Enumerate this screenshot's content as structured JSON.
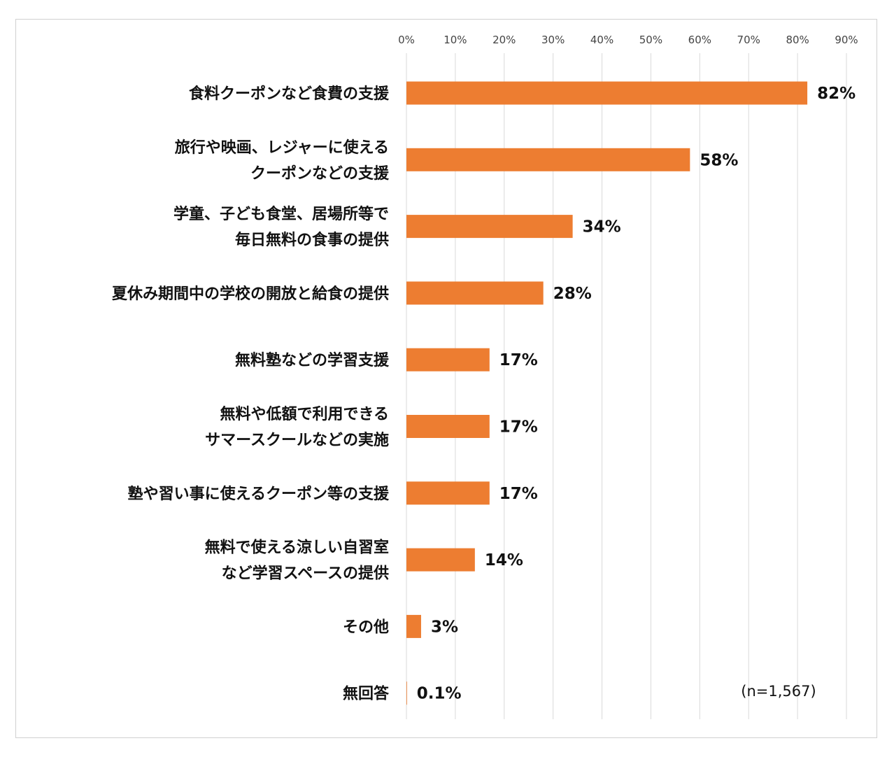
{
  "chart_data": {
    "type": "bar",
    "orientation": "horizontal",
    "categories": [
      [
        "食料クーポンなど食費の支援"
      ],
      [
        "旅行や映画、レジャーに使える",
        "クーポンなどの支援"
      ],
      [
        "学童、子ども食堂、居場所等で",
        "毎日無料の食事の提供"
      ],
      [
        "夏休み期間中の学校の開放と給食の提供"
      ],
      [
        "無料塾などの学習支援"
      ],
      [
        "無料や低額で利用できる",
        "サマースクールなどの実施"
      ],
      [
        "塾や習い事に使えるクーポン等の支援"
      ],
      [
        "無料で使える涼しい自習室",
        "など学習スペースの提供"
      ],
      [
        "その他"
      ],
      [
        "無回答"
      ]
    ],
    "values": [
      82,
      58,
      34,
      28,
      17,
      17,
      17,
      14,
      3,
      0.1
    ],
    "value_labels": [
      "82%",
      "58%",
      "34%",
      "28%",
      "17%",
      "17%",
      "17%",
      "14%",
      "3%",
      "0.1%"
    ],
    "xlim": [
      0,
      90
    ],
    "xticks": [
      0,
      10,
      20,
      30,
      40,
      50,
      60,
      70,
      80,
      90
    ],
    "xtick_labels": [
      "0%",
      "10%",
      "20%",
      "30%",
      "40%",
      "50%",
      "60%",
      "70%",
      "80%",
      "90%"
    ],
    "x_axis_position": "top",
    "grid": true,
    "legend": "none",
    "annotation": "(n=1,567)",
    "bar_color": "#ED7D31",
    "grid_color": "#D9D9D9"
  }
}
